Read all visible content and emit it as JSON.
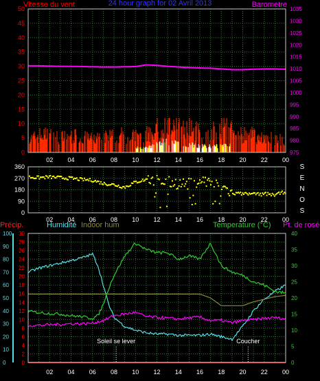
{
  "colors": {
    "background": "#000000",
    "frame": "#c8c8c8",
    "grid": "#2e7d2e",
    "wind_avg": "#ff0000",
    "wind_gust": "#ff2a00",
    "wind_calm": "#ffffff",
    "wind_light": "#ffff00",
    "barometer": "#ff00ff",
    "direction": "#ffff00",
    "precip": "#ff0000",
    "humidity": "#55e0e8",
    "indoor_hum": "#8a8a3c",
    "temperature": "#33cc33",
    "dewpoint": "#ff00ff",
    "title": "#3333ff"
  },
  "chart_data": [
    {
      "type": "bar",
      "title": "24 hour graph for  02 Avril 2013",
      "left_label": "Vitesse du vent",
      "right_label": "Barometre",
      "x_ticks": [
        "02",
        "04",
        "06",
        "08",
        "10",
        "12",
        "14",
        "16",
        "18",
        "20",
        "22",
        "00"
      ],
      "left_axis": {
        "ticks": [
          0,
          5,
          10,
          15,
          20,
          25,
          30,
          35,
          40,
          45,
          50
        ],
        "ylim": [
          0,
          50
        ]
      },
      "right_axis": {
        "ticks": [
          975,
          980,
          985,
          990,
          995,
          1000,
          1005,
          1010,
          1015,
          1020,
          1025,
          1030,
          1035
        ],
        "ylim": [
          975,
          1035
        ]
      },
      "grid": true,
      "series": [
        {
          "name": "Barometre",
          "axis": "right",
          "kind": "line",
          "x": [
            0,
            1,
            2,
            3,
            4,
            5,
            6,
            7,
            8,
            9,
            10,
            11,
            12,
            13,
            14,
            15,
            16,
            17,
            18,
            19,
            20,
            21,
            22,
            23,
            24
          ],
          "values": [
            1011.2,
            1011.2,
            1011.1,
            1011.0,
            1011.0,
            1010.9,
            1010.8,
            1010.7,
            1010.7,
            1010.8,
            1010.9,
            1011.6,
            1011.4,
            1011.0,
            1010.7,
            1010.5,
            1010.3,
            1010.2,
            1009.9,
            1009.6,
            1009.6,
            1009.8,
            1009.9,
            1009.9,
            1009.8
          ]
        },
        {
          "name": "Vitesse du vent",
          "axis": "left",
          "kind": "bars",
          "x": [
            0,
            1,
            2,
            3,
            4,
            5,
            6,
            7,
            8,
            9,
            10,
            11,
            12,
            13,
            14,
            15,
            16,
            17,
            18,
            19,
            20,
            21,
            22,
            23,
            24
          ],
          "values": [
            1,
            3,
            3,
            2,
            3,
            2,
            2,
            2,
            3,
            3,
            3,
            3,
            5,
            7,
            5,
            5,
            4,
            4,
            4,
            4,
            3,
            3,
            2,
            2,
            2
          ],
          "gusts": [
            4,
            6,
            6,
            5,
            6,
            5,
            5,
            5,
            6,
            6,
            6,
            6,
            9,
            11,
            10,
            9,
            7,
            7,
            9,
            8,
            6,
            6,
            5,
            5,
            4
          ]
        }
      ]
    },
    {
      "type": "scatter",
      "x_ticks": [
        "02",
        "04",
        "06",
        "08",
        "10",
        "12",
        "14",
        "16",
        "18",
        "20",
        "22",
        "00"
      ],
      "ylim": [
        0,
        360
      ],
      "y_ticks": [
        0,
        90,
        180,
        270,
        360
      ],
      "compass": [
        "S",
        "E",
        "N",
        "O",
        "S"
      ],
      "grid": true,
      "series": [
        {
          "name": "Direction",
          "x": [
            0,
            1,
            2,
            3,
            4,
            5,
            6,
            7,
            8,
            9,
            10,
            11,
            12,
            13,
            14,
            15,
            16,
            17,
            18,
            19,
            20,
            21,
            22,
            23,
            24
          ],
          "values": [
            280,
            275,
            280,
            275,
            270,
            260,
            255,
            230,
            220,
            200,
            240,
            260,
            250,
            240,
            230,
            225,
            255,
            240,
            215,
            150,
            150,
            145,
            150,
            140,
            165
          ]
        }
      ]
    },
    {
      "type": "line",
      "labels": {
        "precip": "Précip.",
        "humidity": "Humidité",
        "indoor": "Indoor hum",
        "temp": "Temperature (°C)",
        "dew": "Pt. de rosée"
      },
      "x_ticks": [
        "02",
        "04",
        "06",
        "08",
        "10",
        "12",
        "14",
        "16",
        "18",
        "20",
        "22",
        "00"
      ],
      "axes": {
        "humidity_ticks": [
          0,
          10,
          20,
          30,
          40,
          50,
          60,
          70,
          80,
          90,
          100
        ],
        "precip_ticks": [
          0,
          2,
          4,
          6,
          8,
          10,
          12,
          14,
          16,
          18,
          20,
          22,
          24,
          26,
          28,
          30
        ],
        "temp_ticks": [
          0,
          5,
          10,
          15,
          20,
          25,
          30,
          35,
          40
        ]
      },
      "annotations": [
        {
          "label": "Soleil se lever",
          "x": 8.2
        },
        {
          "label": "Coucher",
          "x": 20.5
        }
      ],
      "grid": true,
      "series": [
        {
          "name": "Humidité",
          "axis": "humidity",
          "x": [
            0,
            1,
            2,
            3,
            4,
            5,
            6,
            6.5,
            7,
            7.5,
            8,
            9,
            10,
            11,
            12,
            13,
            14,
            15,
            16,
            17,
            18,
            19,
            20,
            21,
            22,
            23,
            24
          ],
          "values": [
            70,
            73,
            75,
            77,
            79,
            81,
            84,
            75,
            60,
            45,
            35,
            28,
            25,
            23,
            22,
            22,
            21,
            21,
            21,
            22,
            20,
            18,
            28,
            40,
            49,
            55,
            60
          ]
        },
        {
          "name": "Indoor hum",
          "axis": "humidity",
          "x": [
            0,
            2,
            4,
            6,
            8,
            10,
            12,
            14,
            16,
            17,
            18,
            19,
            20,
            21,
            22,
            23,
            24
          ],
          "values": [
            53,
            53,
            53,
            53,
            53,
            53,
            53,
            53,
            53,
            50,
            44,
            44,
            44,
            47,
            49,
            51,
            52
          ]
        },
        {
          "name": "Température",
          "axis": "temp",
          "x": [
            0,
            1,
            2,
            3,
            4,
            5,
            6,
            6.5,
            7,
            7.5,
            8,
            9,
            10,
            11,
            12,
            13,
            14,
            15,
            16,
            17,
            18,
            19,
            20,
            21,
            22,
            23,
            24
          ],
          "values": [
            15.8,
            15.5,
            15.2,
            15.0,
            14.5,
            14.2,
            13.7,
            14.5,
            18,
            23,
            27,
            33,
            37,
            35,
            34,
            34,
            32,
            33,
            32,
            37,
            30,
            28,
            27,
            25,
            24,
            22,
            21.5
          ]
        },
        {
          "name": "Pt. de rosée",
          "axis": "temp",
          "x": [
            0,
            1,
            2,
            3,
            4,
            5,
            6,
            7,
            8,
            9,
            10,
            11,
            12,
            13,
            14,
            15,
            16,
            17,
            18,
            19,
            20,
            21,
            22,
            23,
            24
          ],
          "values": [
            11.5,
            11.5,
            11.7,
            11.8,
            12,
            12,
            12.2,
            13,
            14.5,
            15,
            15.5,
            14.2,
            14,
            13.7,
            13.5,
            13.8,
            14,
            13,
            13,
            12.3,
            13,
            13.2,
            13.7,
            13.9,
            13.5
          ]
        },
        {
          "name": "Précip.",
          "axis": "precip",
          "x": [
            0,
            24
          ],
          "values": [
            0,
            0
          ]
        }
      ]
    }
  ]
}
